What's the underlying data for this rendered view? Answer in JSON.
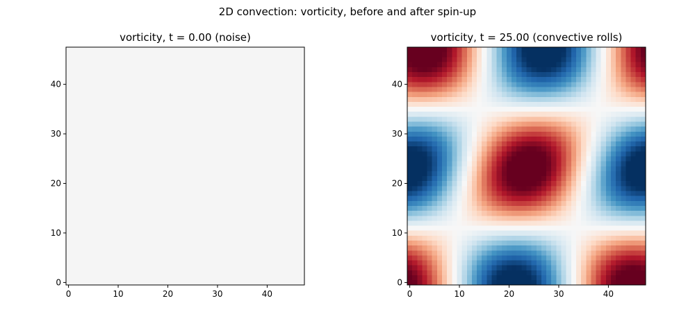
{
  "figure": {
    "suptitle": "2D convection: vorticity, before and after spin-up"
  },
  "chart_data": [
    {
      "type": "heatmap",
      "title": "vorticity, t = 0.00 (noise)",
      "xlabel": "",
      "ylabel": "",
      "grid_size": [
        48,
        48
      ],
      "xlim": [
        -0.5,
        47.5
      ],
      "ylim": [
        -0.5,
        47.5
      ],
      "xticks": [
        0,
        10,
        20,
        30,
        40
      ],
      "yticks": [
        0,
        10,
        20,
        30,
        40
      ],
      "colormap": "RdBu_r",
      "value_description": "uniform near-zero field",
      "fill_color": "#f5f5f5",
      "grid": false
    },
    {
      "type": "heatmap",
      "title": "vorticity, t = 25.00 (convective rolls)",
      "xlabel": "",
      "ylabel": "",
      "grid_size": [
        48,
        48
      ],
      "xlim": [
        -0.5,
        47.5
      ],
      "ylim": [
        -0.5,
        47.5
      ],
      "xticks": [
        0,
        10,
        20,
        30,
        40
      ],
      "yticks": [
        0,
        10,
        20,
        30,
        40
      ],
      "colormap": "RdBu_r",
      "field": {
        "description": "normalized vorticity in [-1, 1], cos(2πx/48)·cos(2πy/48) roll pattern shifted in x with height",
        "x_phase_shift_cells": 3,
        "crossover_y": 25,
        "blue_column_bottom": 19,
        "blue_column_top": 18,
        "red_column_bottom": [
          1,
          47
        ],
        "red_column_top": [
          1,
          45
        ]
      },
      "grid": false
    }
  ]
}
